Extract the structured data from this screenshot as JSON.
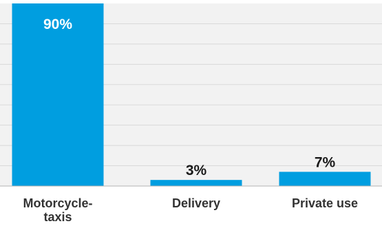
{
  "chart_data": {
    "type": "bar",
    "categories": [
      "Motorcycle-taxis",
      "Delivery",
      "Private use"
    ],
    "category_lines": [
      [
        "Motorcycle-",
        "taxis"
      ],
      [
        "Delivery"
      ],
      [
        "Private use"
      ]
    ],
    "values": [
      90,
      3,
      7
    ],
    "value_labels": [
      "90%",
      "3%",
      "7%"
    ],
    "unit": "%",
    "ylim": [
      0,
      90
    ],
    "grid": true,
    "colors": {
      "bar": "#009ee0",
      "plot_background": "#f2f2f2",
      "grid": "#d9d9d9",
      "label_inside": "#ffffff",
      "label_outside": "#1a1a1a",
      "axis": "#b3b3b3"
    }
  }
}
